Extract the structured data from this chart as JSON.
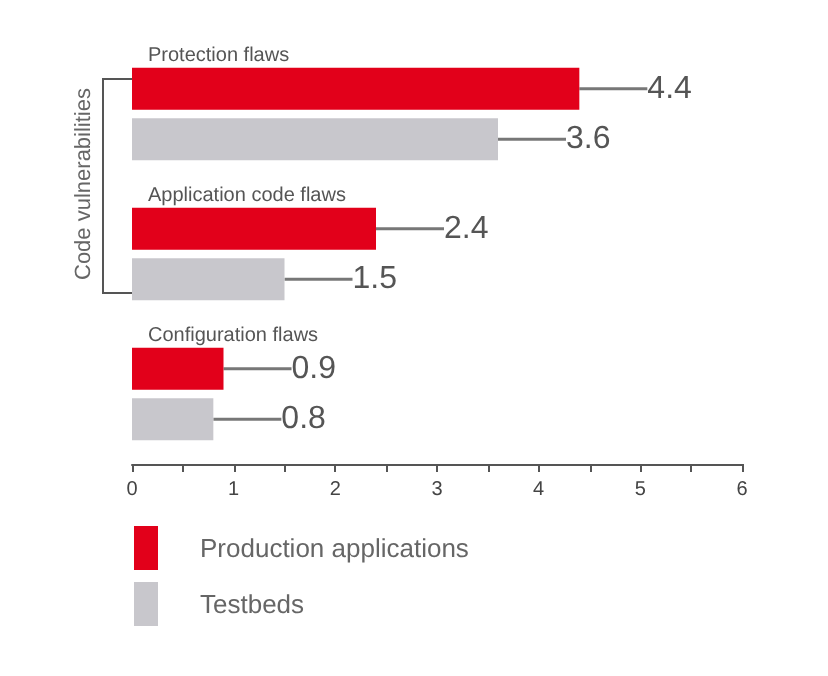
{
  "chart_data": {
    "type": "bar",
    "orientation": "horizontal",
    "categories": [
      "Protection flaws",
      "Application code flaws",
      "Configuration flaws"
    ],
    "series": [
      {
        "name": "Production applications",
        "color": "#e2001a",
        "values": [
          4.4,
          2.4,
          0.9
        ]
      },
      {
        "name": "Testbeds",
        "color": "#c8c7cc",
        "values": [
          3.6,
          1.5,
          0.8
        ]
      }
    ],
    "xlim": [
      0,
      6
    ],
    "xticks": [
      0,
      {
        "value": 0.5,
        "label": null
      },
      1,
      {
        "value": 1.5,
        "label": null
      },
      2,
      {
        "value": 2.5,
        "label": null
      },
      3,
      {
        "value": 3.5,
        "label": null
      },
      4,
      {
        "value": 4.5,
        "label": null
      },
      5,
      {
        "value": 5.5,
        "label": null
      },
      6
    ],
    "data_labels": true,
    "legend": "bottom left",
    "grid": false,
    "annotations": [
      "Code vulnerabilities"
    ]
  }
}
